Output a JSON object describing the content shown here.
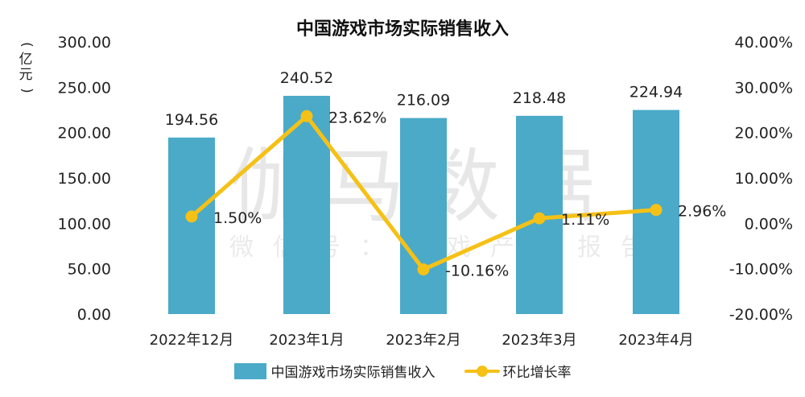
{
  "chart_data": {
    "type": "bar+line",
    "title": "中国游戏市场实际销售收入",
    "categories": [
      "2022年12月",
      "2023年1月",
      "2023年2月",
      "2023年3月",
      "2023年4月"
    ],
    "series": [
      {
        "name": "中国游戏市场实际销售收入",
        "type": "bar",
        "axis": "left",
        "values": [
          194.56,
          240.52,
          216.09,
          218.48,
          224.94
        ],
        "labels": [
          "194.56",
          "240.52",
          "216.09",
          "218.48",
          "224.94"
        ],
        "color": "#4aaac8"
      },
      {
        "name": "环比增长率",
        "type": "line",
        "axis": "right",
        "values": [
          1.5,
          23.62,
          -10.16,
          1.11,
          2.96
        ],
        "labels": [
          "1.50%",
          "23.62%",
          "-10.16%",
          "1.11%",
          "2.96%"
        ],
        "color": "#f5c117"
      }
    ],
    "ylabel_left": "(亿元)",
    "ylim_left": [
      0,
      300
    ],
    "yticks_left": [
      "0.00",
      "50.00",
      "100.00",
      "150.00",
      "200.00",
      "250.00",
      "300.00"
    ],
    "ylim_right": [
      -20,
      40
    ],
    "yticks_right": [
      "-20.00%",
      "-10.00%",
      "0.00%",
      "10.00%",
      "20.00%",
      "30.00%",
      "40.00%"
    ],
    "grid": false,
    "legend_position": "bottom"
  },
  "unit_label": "(亿元)",
  "watermark": {
    "main": "伽马数据",
    "sub": "微信号：游戏产业报告"
  },
  "legend": {
    "bar_label": "中国游戏市场实际销售收入",
    "line_label": "环比增长率"
  }
}
